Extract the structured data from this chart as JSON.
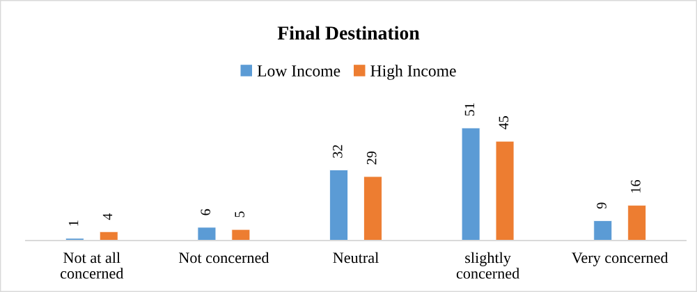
{
  "chart_data": {
    "type": "bar",
    "title": "Final Destination",
    "categories": [
      "Not at all\nconcerned",
      "Not concerned",
      "Neutral",
      "slightly\nconcerned",
      "Very concerned"
    ],
    "series": [
      {
        "name": "Low Income",
        "color": "#5b9bd5",
        "values": [
          1,
          6,
          32,
          51,
          9
        ]
      },
      {
        "name": "High Income",
        "color": "#ed7d31",
        "values": [
          4,
          5,
          29,
          45,
          16
        ]
      }
    ],
    "data_labels": true,
    "legend": "top"
  }
}
